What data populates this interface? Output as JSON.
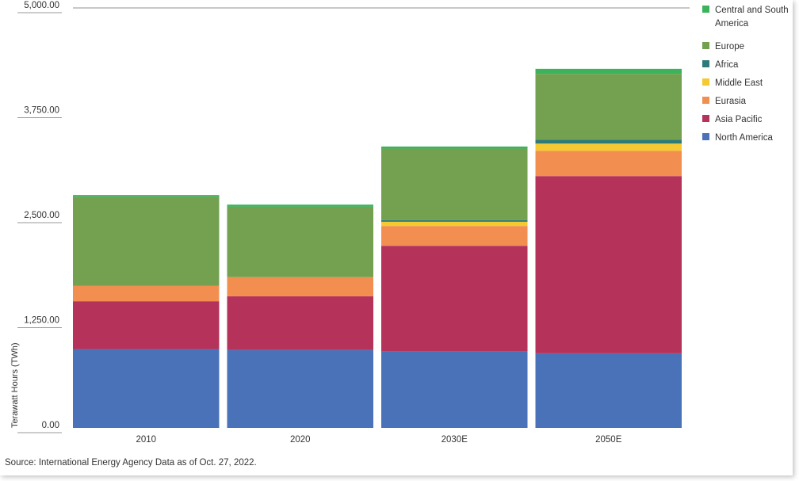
{
  "chart_data": {
    "type": "bar",
    "stacked": true,
    "categories": [
      "2010",
      "2020",
      "2030E",
      "2050E"
    ],
    "ylabel": "Terawatt Hours (TWh)",
    "ylim": [
      0,
      5000
    ],
    "yticks": [
      0,
      1250,
      2500,
      3750,
      5000
    ],
    "ytick_labels": [
      "0.00",
      "1,250.00",
      "2,500.00",
      "3,750.00",
      "5,000.00"
    ],
    "grid": "top line only",
    "legend_position": "right",
    "series": [
      {
        "name": "North America",
        "color": "#4a72b8",
        "values": [
          938,
          928,
          908,
          888
        ]
      },
      {
        "name": "Asia Pacific",
        "color": "#b5325a",
        "values": [
          570,
          640,
          1260,
          2110
        ]
      },
      {
        "name": "Eurasia",
        "color": "#f28f50",
        "values": [
          182,
          228,
          236,
          302
        ]
      },
      {
        "name": "Middle East",
        "color": "#f5c932",
        "values": [
          0,
          0,
          50,
          85
        ]
      },
      {
        "name": "Africa",
        "color": "#2e7a78",
        "values": [
          0,
          0,
          20,
          45
        ]
      },
      {
        "name": "Europe",
        "color": "#73a14f",
        "values": [
          1062,
          837,
          851,
          785
        ]
      },
      {
        "name": "Central and South America",
        "color": "#3cb25a",
        "values": [
          20,
          25,
          25,
          60
        ]
      }
    ]
  },
  "source_text": "Source: International Energy Agency  Data as of Oct. 27, 2022."
}
